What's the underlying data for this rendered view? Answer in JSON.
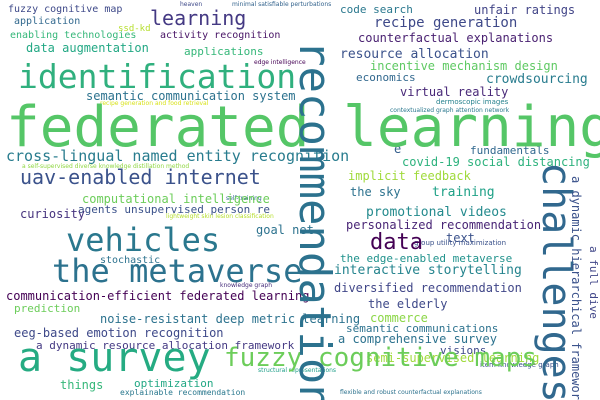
{
  "words": {
    "federated_learning": "federated learning",
    "recommendation": "recommendation",
    "identification": "identification",
    "a_survey": "a survey",
    "the_metaverse": "the metaverse",
    "vehicles": "vehicles",
    "challenges": "challenges",
    "uav_internet": "uav-enabled internet",
    "fuzzy_cognitive_maps": "fuzzy cognitive maps",
    "learning_top": "learning",
    "data": "data",
    "cross_lingual": "cross-lingual named entity recognition",
    "recipe_generation": "recipe generation",
    "resource_allocation": "resource allocation",
    "incentive_mechanism": "incentive mechanism design",
    "virtual_reality": "virtual reality",
    "crowdsourcing": "crowdsourcing",
    "data_augmentation": "data augmentation",
    "semantic_comm_system": "semantic communication system",
    "unsupervised_person": "agents unsupervised person re",
    "computational_intel": "computational intelligence",
    "implicit_feedback": "implicit feedback",
    "covid": "covid-19 social distancing",
    "promotional_videos": "promotional videos",
    "personalized_rec": "personalized recommendation",
    "interactive_storytelling": "interactive storytelling",
    "diversified_rec": "diversified recommendation",
    "the_elderly": "the elderly",
    "communication_efficient": "communication-efficient federated learning",
    "noise_resistant": "noise-resistant deep metric learning",
    "eeg_emotion": "eeg-based emotion recognition",
    "dynamic_resource": "a dynamic resource allocation framework",
    "comprehensive_survey": "a comprehensive survey",
    "semi_supervised": "semi-supervised learning",
    "semantic_communications": "semantic communications",
    "fuzzy_cognitive_map": "fuzzy cognitive map",
    "unfair_ratings": "unfair ratings",
    "code_search": "code search",
    "counterfactual_expl": "counterfactual explanations",
    "activity_recognition": "activity recognition",
    "enabling_technologies": "enabling technologies",
    "application": "application",
    "applications": "applications",
    "economics": "economics",
    "the_sky": "the sky",
    "training": "training",
    "fundamentals": "fundamentals",
    "curiosity": "curiosity",
    "goal_net": "goal net",
    "text": "text",
    "stochastic": "stochastic",
    "prediction": "prediction",
    "visions": "visions",
    "commerce": "commerce",
    "things": "things",
    "optimization": "optimization",
    "explainable_rec": "explainable recommendation",
    "edge_enabled_metaverse": "the edge-enabled metaverse",
    "dynamic_hierarchical": "a dynamic hierarchical framework",
    "ssd_kd": "ssd-kd",
    "e": "e",
    "a_full_dive": "a full dive",
    "heaven": "heaven",
    "minimal_sat": "minimal satisfiable perturbations",
    "edge_intelligence": "edge intelligence",
    "recipe_food": "recipe generation and food retrieval",
    "self_training": "self-training",
    "group_utility": "group utility maximization",
    "knowledge_graph": "knowledge graph",
    "item_knowledge": "item knowledge graph",
    "structural_repr": "structural representations",
    "flexible_robust": "flexible and robust counterfactual explanations",
    "dermoscopic": "dermoscopic images",
    "contextualized": "contextualized graph attention network",
    "lightweight": "lightweight skin lesion classification",
    "self_supervised_diverse": "a self-supervised diverse knowledge distillation method"
  }
}
